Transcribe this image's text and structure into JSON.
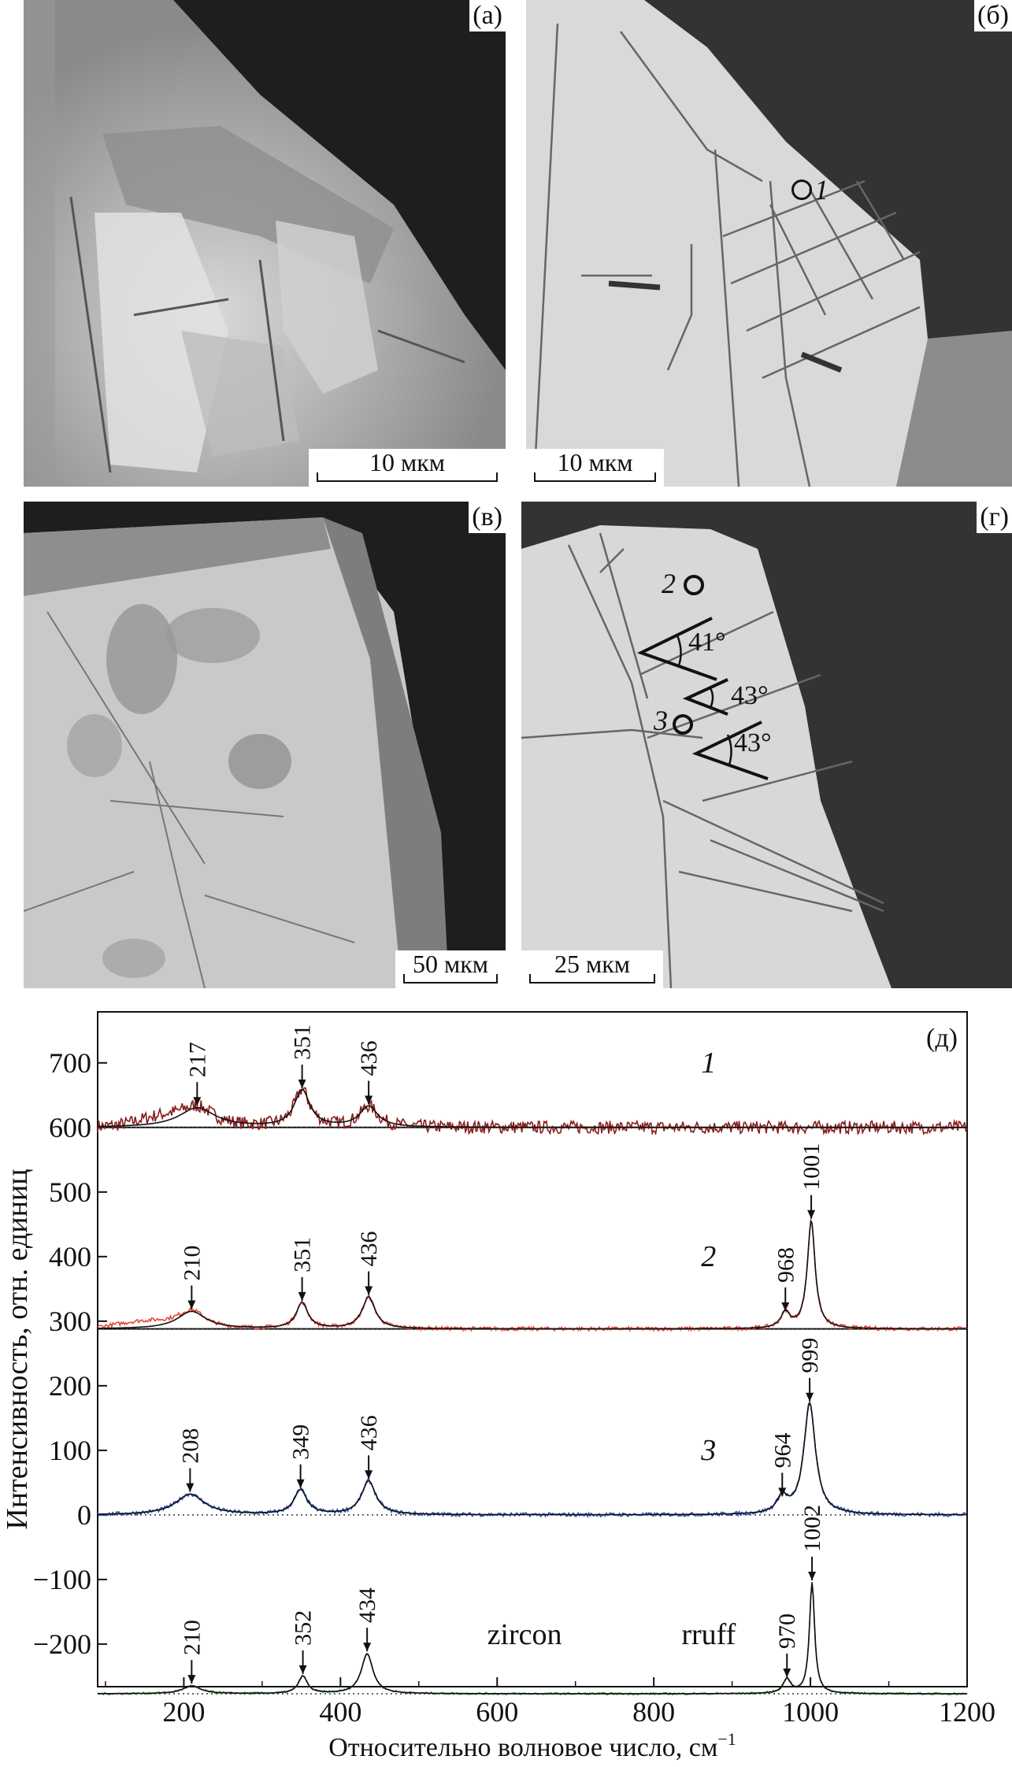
{
  "panels": {
    "a": {
      "label": "(а)",
      "scale": "10 мкм"
    },
    "b": {
      "label": "(б)",
      "scale": "10 мкм",
      "points": [
        "1"
      ]
    },
    "v": {
      "label": "(в)",
      "scale": "50 мкм"
    },
    "g": {
      "label": "(г)",
      "scale": "25 мкм",
      "points": [
        "2",
        "3"
      ],
      "angles": [
        "41°",
        "43°",
        "43°"
      ]
    }
  },
  "chart_data": {
    "type": "line",
    "panel_label": "(д)",
    "xlabel": "Относительно волновое число, см",
    "xlabel_sup": "−1",
    "ylabel": "Интенсивность, отн. единиц",
    "xlim": [
      90,
      1200
    ],
    "ylim": [
      -266,
      779
    ],
    "xticks": [
      200,
      400,
      600,
      800,
      1000,
      1200
    ],
    "xtick_labels": [
      "200",
      "400",
      "600",
      "800",
      "1000",
      "1200"
    ],
    "yticks": [
      -200,
      -100,
      0,
      100,
      200,
      300,
      400,
      500,
      600,
      700
    ],
    "ytick_labels": [
      "−200",
      "−100",
      "0",
      "100",
      "200",
      "300",
      "400",
      "500",
      "600",
      "700"
    ],
    "grid": false,
    "series": [
      {
        "name": "1",
        "color": "#8b1c1c",
        "baseline": 600,
        "peaks": [
          {
            "x": 217,
            "y": 630,
            "label": "217"
          },
          {
            "x": 351,
            "y": 657,
            "label": "351"
          },
          {
            "x": 436,
            "y": 632,
            "label": "436"
          }
        ]
      },
      {
        "name": "2",
        "color": "#e8453c",
        "baseline": 288,
        "peaks": [
          {
            "x": 210,
            "y": 315,
            "label": "210"
          },
          {
            "x": 351,
            "y": 328,
            "label": "351"
          },
          {
            "x": 436,
            "y": 337,
            "label": "436"
          },
          {
            "x": 968,
            "y": 312,
            "label": "968"
          },
          {
            "x": 1001,
            "y": 455,
            "label": "1001"
          }
        ]
      },
      {
        "name": "3",
        "color": "#2a56b5",
        "baseline": 0,
        "peaks": [
          {
            "x": 208,
            "y": 32,
            "label": "208"
          },
          {
            "x": 349,
            "y": 38,
            "label": "349"
          },
          {
            "x": 436,
            "y": 52,
            "label": "436"
          },
          {
            "x": 964,
            "y": 25,
            "label": "964"
          },
          {
            "x": 999,
            "y": 172,
            "label": "999"
          }
        ]
      },
      {
        "name": "zircon",
        "source": "rruff",
        "color": "#3b8c3b",
        "baseline": -277,
        "peaks": [
          {
            "x": 210,
            "y": -265,
            "label": "210"
          },
          {
            "x": 352,
            "y": -250,
            "label": "352"
          },
          {
            "x": 434,
            "y": -215,
            "label": "434"
          },
          {
            "x": 970,
            "y": -255,
            "label": "970"
          },
          {
            "x": 1002,
            "y": -105,
            "label": "1002"
          }
        ]
      }
    ]
  }
}
